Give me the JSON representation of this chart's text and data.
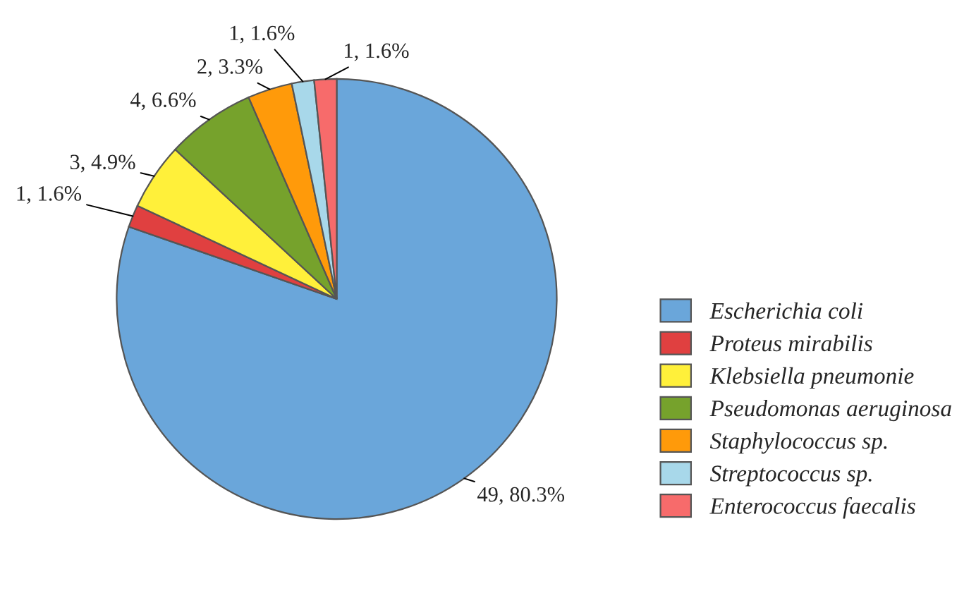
{
  "chart_data": {
    "type": "pie",
    "categories": [
      "Escherichia coli",
      "Proteus mirabilis",
      "Klebsiella pneumonie",
      "Pseudomonas aeruginosa",
      "Staphylococcus sp.",
      "Streptococcus sp.",
      "Enterococcus faecalis"
    ],
    "values": [
      49,
      1,
      3,
      4,
      2,
      1,
      1
    ],
    "value_labels": [
      "49, 80.3%",
      "1, 1.6%",
      "3, 4.9%",
      "4, 6.6%",
      "2, 3.3%",
      "1, 1.6%",
      "1, 1.6%"
    ],
    "colors": [
      "#6aa6da",
      "#e04040",
      "#fff03a",
      "#76a22c",
      "#ff9a0a",
      "#a8d8ea",
      "#f76b6b"
    ],
    "legend": "right"
  }
}
